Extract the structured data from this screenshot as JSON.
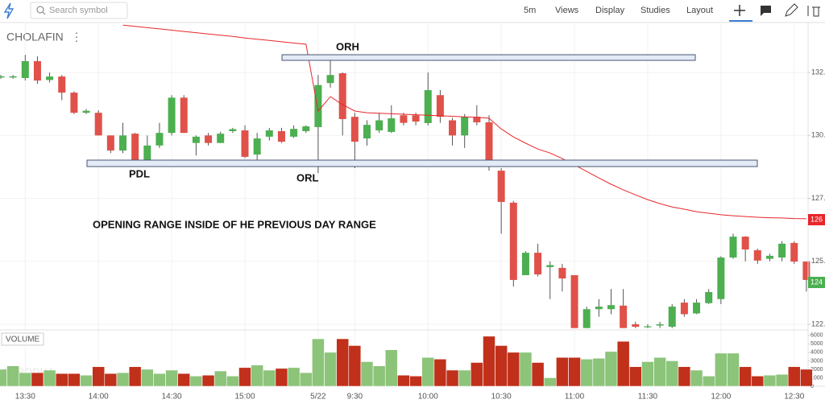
{
  "toolbar": {
    "search_placeholder": "Search symbol",
    "interval": "5m",
    "menus": [
      "Views",
      "Display",
      "Studies",
      "Layout"
    ]
  },
  "watermark": "ZERODHA",
  "chart_data": {
    "type": "candlestick",
    "title": "CHOLAFIN",
    "annotations": [
      "ORH",
      "PDL",
      "ORL",
      "OPENING RANGE INSIDE OF HE PREVIOUS DAY RANGE"
    ],
    "price_tags": [
      {
        "label": "126",
        "color": "#e8262a"
      },
      {
        "label": "124",
        "color": "#4caf50"
      }
    ],
    "up_color": "#4caf50",
    "down_color": "#e0514a",
    "categories": [
      null,
      null,
      "13:30",
      null,
      null,
      null,
      null,
      null,
      "14:00",
      null,
      null,
      null,
      null,
      null,
      "14:30",
      null,
      null,
      null,
      null,
      null,
      "15:00",
      null,
      null,
      null,
      null,
      null,
      "5/22",
      null,
      null,
      "9:30",
      null,
      null,
      null,
      null,
      null,
      "10:00",
      null,
      null,
      null,
      null,
      null,
      "10:30",
      null,
      null,
      null,
      null,
      null,
      "11:00",
      null,
      null,
      null,
      null,
      null,
      "11:30",
      null,
      null,
      null,
      null,
      null,
      "12:00",
      null,
      null,
      null,
      null,
      null,
      "12:30",
      null
    ],
    "open": [
      132.3,
      132.3,
      132.28,
      132.95,
      132.2,
      132.34,
      131.7,
      130.9,
      130.9,
      130.0,
      129.4,
      130.07,
      128.9,
      129.6,
      130.1,
      131.5,
      129.7,
      130.0,
      129.7,
      130.17,
      130.2,
      129.24,
      129.95,
      130.17,
      129.95,
      130.17,
      130.33,
      132.08,
      132.47,
      130.74,
      129.88,
      130.2,
      130.14,
      130.8,
      130.8,
      130.49,
      131.6,
      130.6,
      130.0,
      130.74,
      130.52,
      128.6,
      127.33,
      124.45,
      125.34,
      124.77,
      124.74,
      124.45,
      122.35,
      123.1,
      123.1,
      123.24,
      122.5,
      122.38,
      122.45,
      122.4,
      123.36,
      122.93,
      123.34,
      123.5,
      125.15,
      125.98,
      125.44,
      125.1,
      125.15,
      125.73,
      124.99
    ],
    "high": [
      132.4,
      132.4,
      133.2,
      133.14,
      132.5,
      132.4,
      131.75,
      131.05,
      131.0,
      130.0,
      130.5,
      130.1,
      130.0,
      130.5,
      131.6,
      131.6,
      130.0,
      130.1,
      130.15,
      130.3,
      130.4,
      130.1,
      130.3,
      130.3,
      130.4,
      130.4,
      132.4,
      133.1,
      132.5,
      130.9,
      130.6,
      130.9,
      131.2,
      130.9,
      130.9,
      132.5,
      131.8,
      130.7,
      130.85,
      131.2,
      130.8,
      128.7,
      127.4,
      125.4,
      125.7,
      125.0,
      124.9,
      124.45,
      123.2,
      123.5,
      123.9,
      123.9,
      122.6,
      122.5,
      122.6,
      123.3,
      123.5,
      123.5,
      123.9,
      125.2,
      126.1,
      126.0,
      125.5,
      125.3,
      125.8,
      125.8,
      125.0
    ],
    "low": [
      132.25,
      132.25,
      132.18,
      132.05,
      132.1,
      131.4,
      130.85,
      130.85,
      130.0,
      129.3,
      129.3,
      128.8,
      128.85,
      129.5,
      130.0,
      130.1,
      129.2,
      129.6,
      129.7,
      130.1,
      129.1,
      128.9,
      129.8,
      129.7,
      129.9,
      130.1,
      128.5,
      131.9,
      130.0,
      128.7,
      129.6,
      130.1,
      130.1,
      130.4,
      130.4,
      130.4,
      130.5,
      129.6,
      129.5,
      130.4,
      128.6,
      126.1,
      124.0,
      124.45,
      124.4,
      123.5,
      123.8,
      122.35,
      122.35,
      122.8,
      122.9,
      122.35,
      122.35,
      122.35,
      122.35,
      122.35,
      122.8,
      122.9,
      123.3,
      123.3,
      125.1,
      125.0,
      124.9,
      125.0,
      125.0,
      124.9,
      123.8
    ],
    "close": [
      132.35,
      132.35,
      132.95,
      132.18,
      132.34,
      131.7,
      130.9,
      130.98,
      130.0,
      129.4,
      130.0,
      128.83,
      129.6,
      130.1,
      131.5,
      130.1,
      129.95,
      129.7,
      130.07,
      130.25,
      129.15,
      129.88,
      130.2,
      129.75,
      130.26,
      130.36,
      132.0,
      132.4,
      130.65,
      129.75,
      130.42,
      130.6,
      130.68,
      130.5,
      130.55,
      131.8,
      130.74,
      130.0,
      130.74,
      130.52,
      128.83,
      127.36,
      124.26,
      125.34,
      124.48,
      124.85,
      124.32,
      122.35,
      123.1,
      123.2,
      123.26,
      122.35,
      122.4,
      122.42,
      122.5,
      123.2,
      122.9,
      123.36,
      123.78,
      125.15,
      125.98,
      125.47,
      125.03,
      125.22,
      125.7,
      124.99,
      124.26
    ],
    "ylim": [
      122.34,
      134.42
    ],
    "yticks": [
      {
        "value": 122.5,
        "label": "122."
      },
      {
        "value": 125,
        "label": "125."
      },
      {
        "value": 127.5,
        "label": "127."
      },
      {
        "value": 130,
        "label": "130."
      },
      {
        "value": 132.5,
        "label": "132."
      }
    ],
    "grid": true,
    "indicator": {
      "color": "#e8262a",
      "values": [
        null,
        null,
        null,
        null,
        null,
        null,
        null,
        null,
        null,
        null,
        134.38,
        134.33,
        134.28,
        134.23,
        134.18,
        134.13,
        134.08,
        134.03,
        133.98,
        133.93,
        133.87,
        133.82,
        133.77,
        133.72,
        133.67,
        133.62,
        130.97,
        131.54,
        131.22,
        130.97,
        130.9,
        130.88,
        130.86,
        130.84,
        130.82,
        130.8,
        130.78,
        130.76,
        130.74,
        130.72,
        130.68,
        130.26,
        129.94,
        129.69,
        129.46,
        129.3,
        129.08,
        128.83,
        128.57,
        128.31,
        128.06,
        127.84,
        127.64,
        127.45,
        127.29,
        127.16,
        127.07,
        126.97,
        126.91,
        126.85,
        126.81,
        126.78,
        126.75,
        126.73,
        126.72,
        126.7,
        126.69
      ]
    },
    "volume": {
      "label": "VOLUME",
      "up_color": "#8cc47a",
      "down_color": "#c0301a",
      "values": [
        2000,
        2400,
        1600,
        1600,
        1900,
        1500,
        1500,
        1300,
        2300,
        1500,
        1600,
        2300,
        2000,
        1500,
        1900,
        1500,
        1200,
        1300,
        1800,
        1200,
        2200,
        2500,
        1900,
        2100,
        2200,
        1600,
        5600,
        4000,
        5600,
        4800,
        2900,
        2400,
        4300,
        1300,
        1200,
        3400,
        3200,
        1900,
        1900,
        2800,
        5900,
        4800,
        4000,
        4000,
        2800,
        1000,
        3400,
        3400,
        3200,
        3300,
        4100,
        5300,
        2300,
        2900,
        3400,
        3000,
        2300,
        1900,
        1200,
        3900,
        3900,
        2300,
        1200,
        1300,
        1400,
        2300,
        2000
      ],
      "ylim": [
        0,
        6650
      ],
      "yticks": [
        0,
        1000,
        2000,
        3000,
        4000,
        5000,
        6000
      ]
    }
  }
}
